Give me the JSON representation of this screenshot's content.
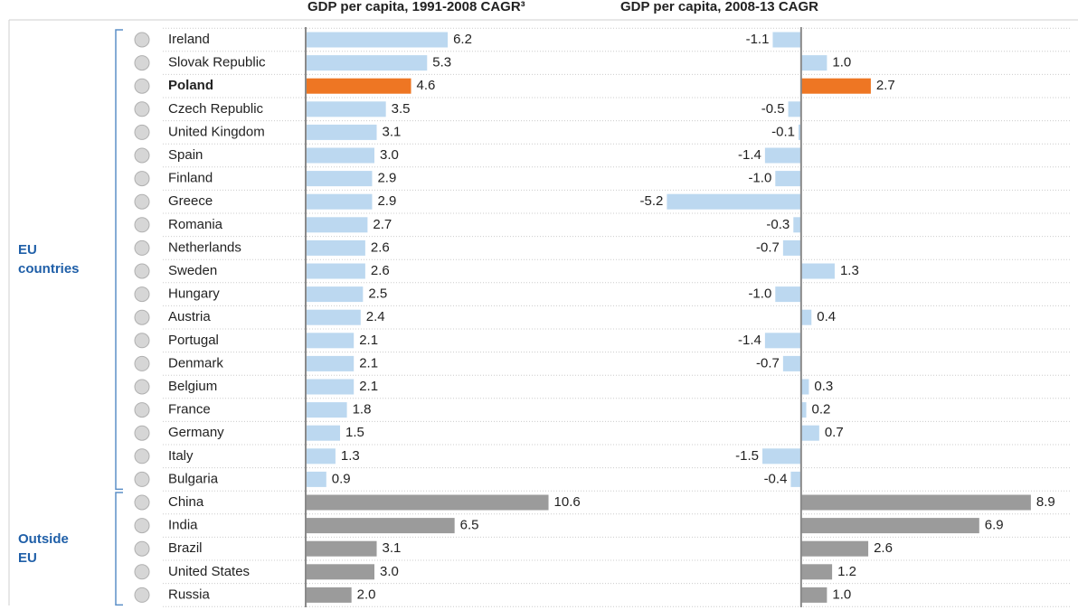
{
  "chart_data": {
    "type": "bar",
    "orientation": "horizontal",
    "categories": [
      "Ireland",
      "Slovak Republic",
      "Poland",
      "Czech Republic",
      "United Kingdom",
      "Spain",
      "Finland",
      "Greece",
      "Romania",
      "Netherlands",
      "Sweden",
      "Hungary",
      "Austria",
      "Portugal",
      "Denmark",
      "Belgium",
      "France",
      "Germany",
      "Italy",
      "Bulgaria",
      "China",
      "India",
      "Brazil",
      "United States",
      "Russia"
    ],
    "highlight": "Poland",
    "highlight_color": "#ee7623",
    "groups": [
      {
        "label": "EU countries",
        "count": 20
      },
      {
        "label": "Outside EU",
        "count": 5
      }
    ],
    "panels": [
      {
        "title": "GDP per capita, 1991-2008 CAGR³",
        "values": [
          6.2,
          5.3,
          4.6,
          3.5,
          3.1,
          3.0,
          2.9,
          2.9,
          2.7,
          2.6,
          2.6,
          2.5,
          2.4,
          2.1,
          2.1,
          2.1,
          1.8,
          1.5,
          1.3,
          0.9,
          10.6,
          6.5,
          3.1,
          3.0,
          2.0
        ],
        "value_labels": [
          "6.2",
          "5.3",
          "4.6",
          "3.5",
          "3.1",
          "3.0",
          "2.9",
          "2.9",
          "2.7",
          "2.6",
          "2.6",
          "2.5",
          "2.4",
          "2.1",
          "2.1",
          "2.1",
          "1.8",
          "1.5",
          "1.3",
          "0.9",
          "10.6",
          "6.5",
          "3.1",
          "3.0",
          "2.0"
        ],
        "colors": [
          "#bcd8f0",
          "#bcd8f0",
          "#ee7623",
          "#bcd8f0",
          "#bcd8f0",
          "#bcd8f0",
          "#bcd8f0",
          "#bcd8f0",
          "#bcd8f0",
          "#bcd8f0",
          "#bcd8f0",
          "#bcd8f0",
          "#bcd8f0",
          "#bcd8f0",
          "#bcd8f0",
          "#bcd8f0",
          "#bcd8f0",
          "#bcd8f0",
          "#bcd8f0",
          "#bcd8f0",
          "#9b9b9b",
          "#9b9b9b",
          "#9b9b9b",
          "#9b9b9b",
          "#9b9b9b"
        ],
        "xlim": [
          0,
          13.5
        ]
      },
      {
        "title": "GDP per capita, 2008-13 CAGR",
        "values": [
          -1.1,
          1.0,
          2.7,
          -0.5,
          -0.1,
          -1.4,
          -1.0,
          -5.2,
          -0.3,
          -0.7,
          1.3,
          -1.0,
          0.4,
          -1.4,
          -0.7,
          0.3,
          0.2,
          0.7,
          -1.5,
          -0.4,
          8.9,
          6.9,
          2.6,
          1.2,
          1.0
        ],
        "value_labels": [
          "-1.1",
          "1.0",
          "2.7",
          "-0.5",
          "-0.1",
          "-1.4",
          "-1.0",
          "-5.2",
          "-0.3",
          "-0.7",
          "1.3",
          "-1.0",
          "0.4",
          "-1.4",
          "-0.7",
          "0.3",
          "0.2",
          "0.7",
          "-1.5",
          "-0.4",
          "8.9",
          "6.9",
          "2.6",
          "1.2",
          "1.0"
        ],
        "colors": [
          "#bcd8f0",
          "#bcd8f0",
          "#ee7623",
          "#bcd8f0",
          "#bcd8f0",
          "#bcd8f0",
          "#bcd8f0",
          "#bcd8f0",
          "#bcd8f0",
          "#bcd8f0",
          "#bcd8f0",
          "#bcd8f0",
          "#bcd8f0",
          "#bcd8f0",
          "#bcd8f0",
          "#bcd8f0",
          "#bcd8f0",
          "#bcd8f0",
          "#bcd8f0",
          "#bcd8f0",
          "#9b9b9b",
          "#9b9b9b",
          "#9b9b9b",
          "#9b9b9b",
          "#9b9b9b"
        ],
        "xlim": [
          -5.6,
          10.2
        ]
      }
    ]
  }
}
